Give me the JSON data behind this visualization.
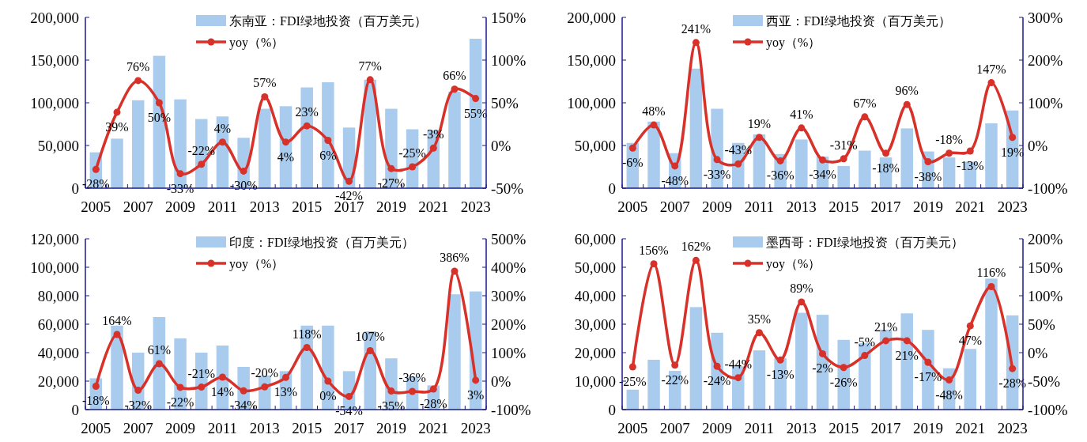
{
  "chart_data": [
    {
      "type": "bar",
      "categories": [
        "2005",
        null,
        "2007",
        null,
        "2009",
        null,
        "2011",
        null,
        "2013",
        null,
        "2015",
        null,
        "2017",
        null,
        "2019",
        null,
        "2021",
        null,
        "2023"
      ],
      "series": [
        {
          "name": "东南亚：FDI绿地投资（百万美元）",
          "color": "#a9cbed",
          "values": [
            42000,
            58000,
            103000,
            155000,
            104000,
            81000,
            84000,
            59000,
            93000,
            96000,
            118000,
            124000,
            71000,
            127000,
            93000,
            69000,
            68000,
            113000,
            175000
          ]
        },
        {
          "name": "yoy（%）",
          "type": "line",
          "axis": "y2",
          "color": "#d7312a",
          "marker": "circle",
          "values": [
            -28,
            39,
            76,
            50,
            -33,
            -22,
            4,
            -30,
            57,
            4,
            23,
            6,
            -42,
            77,
            -27,
            -25,
            -3,
            66,
            55
          ],
          "value_labels": [
            "-28%",
            "39%",
            "76%",
            "50%",
            "-33%",
            "-22%",
            "4%",
            "-30%",
            "57%",
            "4%",
            "23%",
            "6%",
            "-42%",
            "77%",
            "-27%",
            "-25%",
            "-3%",
            "66%",
            "55%"
          ]
        }
      ],
      "ylim": [
        0,
        200000
      ],
      "yticks": [
        {
          "value": 0,
          "label": "0"
        },
        {
          "value": 50000,
          "label": "50,000"
        },
        {
          "value": 100000,
          "label": "100,000"
        },
        {
          "value": 150000,
          "label": "150,000"
        },
        {
          "value": 200000,
          "label": "200,000"
        }
      ],
      "y2lim": [
        -50,
        150
      ],
      "y2ticks": [
        {
          "value": -50,
          "label": "-50%"
        },
        {
          "value": 0,
          "label": "0%"
        },
        {
          "value": 50,
          "label": "50%"
        },
        {
          "value": 100,
          "label": "100%"
        },
        {
          "value": 150,
          "label": "150%"
        }
      ],
      "legend": "top"
    },
    {
      "type": "bar",
      "categories": [
        "2005",
        null,
        "2007",
        null,
        "2009",
        null,
        "2011",
        null,
        "2013",
        null,
        "2015",
        null,
        "2017",
        null,
        "2019",
        null,
        "2021",
        null,
        "2023"
      ],
      "series": [
        {
          "name": "西亚：FDI绿地投资（百万美元）",
          "color": "#a9cbed",
          "values": [
            53000,
            78000,
            41000,
            140000,
            93000,
            53000,
            63000,
            40000,
            57000,
            37000,
            26000,
            44000,
            36000,
            70000,
            43000,
            36000,
            31000,
            76000,
            91000
          ]
        },
        {
          "name": "yoy（%）",
          "type": "line",
          "axis": "y2",
          "color": "#d7312a",
          "marker": "circle",
          "values": [
            -6,
            48,
            -48,
            241,
            -33,
            -43,
            19,
            -36,
            41,
            -34,
            -31,
            67,
            -18,
            96,
            -38,
            -18,
            -13,
            147,
            19
          ],
          "value_labels": [
            "-6%",
            "48%",
            "-48%",
            "241%",
            "-33%",
            "-43%",
            "19%",
            "-36%",
            "41%",
            "-34%",
            "-31%",
            "67%",
            "-18%",
            "96%",
            "-38%",
            "-18%",
            "-13%",
            "147%",
            "19%"
          ]
        }
      ],
      "ylim": [
        0,
        200000
      ],
      "yticks": [
        {
          "value": 0,
          "label": "0"
        },
        {
          "value": 50000,
          "label": "50,000"
        },
        {
          "value": 100000,
          "label": "100,000"
        },
        {
          "value": 150000,
          "label": "150,000"
        },
        {
          "value": 200000,
          "label": "200,000"
        }
      ],
      "y2lim": [
        -100,
        300
      ],
      "y2ticks": [
        {
          "value": -100,
          "label": "-100%"
        },
        {
          "value": 0,
          "label": "0%"
        },
        {
          "value": 100,
          "label": "100%"
        },
        {
          "value": 200,
          "label": "200%"
        },
        {
          "value": 300,
          "label": "300%"
        }
      ],
      "legend": "top"
    },
    {
      "type": "bar",
      "categories": [
        "2005",
        null,
        "2007",
        null,
        "2009",
        null,
        "2011",
        null,
        "2013",
        null,
        "2015",
        null,
        "2017",
        null,
        "2019",
        null,
        "2021",
        null,
        "2023"
      ],
      "series": [
        {
          "name": "印度：FDI绿地投资（百万美元）",
          "color": "#a9cbed",
          "values": [
            22000,
            59000,
            40000,
            65000,
            50000,
            40000,
            45000,
            30000,
            24000,
            27000,
            59000,
            59000,
            27000,
            55000,
            36000,
            23000,
            17000,
            81000,
            83000
          ]
        },
        {
          "name": "yoy（%）",
          "type": "line",
          "axis": "y2",
          "color": "#d7312a",
          "marker": "circle",
          "values": [
            -18,
            164,
            -32,
            61,
            -22,
            -21,
            14,
            -34,
            -20,
            13,
            118,
            0,
            -54,
            107,
            -35,
            -36,
            -28,
            386,
            3
          ],
          "value_labels": [
            "-18%",
            "164%",
            "-32%",
            "61%",
            "-22%",
            "-21%",
            "14%",
            "-34%",
            "-20%",
            "13%",
            "118%",
            "0%",
            "-54%",
            "107%",
            "-35%",
            "-36%",
            "-28%",
            "386%",
            "3%"
          ]
        }
      ],
      "ylim": [
        0,
        120000
      ],
      "yticks": [
        {
          "value": 0,
          "label": "0"
        },
        {
          "value": 20000,
          "label": "20,000"
        },
        {
          "value": 40000,
          "label": "40,000"
        },
        {
          "value": 60000,
          "label": "60,000"
        },
        {
          "value": 80000,
          "label": "80,000"
        },
        {
          "value": 100000,
          "label": "100,000"
        },
        {
          "value": 120000,
          "label": "120,000"
        }
      ],
      "y2lim": [
        -100,
        500
      ],
      "y2ticks": [
        {
          "value": -100,
          "label": "-100%"
        },
        {
          "value": 0,
          "label": "0%"
        },
        {
          "value": 100,
          "label": "100%"
        },
        {
          "value": 200,
          "label": "200%"
        },
        {
          "value": 300,
          "label": "300%"
        },
        {
          "value": 400,
          "label": "400%"
        },
        {
          "value": 500,
          "label": "500%"
        }
      ],
      "legend": "top"
    },
    {
      "type": "bar",
      "categories": [
        "2005",
        null,
        "2007",
        null,
        "2009",
        null,
        "2011",
        null,
        "2013",
        null,
        "2015",
        null,
        "2017",
        null,
        "2019",
        null,
        "2021",
        null,
        "2023"
      ],
      "series": [
        {
          "name": "墨西哥：FDI绿地投资（百万美元）",
          "color": "#a9cbed",
          "values": [
            7000,
            17500,
            13600,
            36000,
            27000,
            15200,
            20800,
            18100,
            34000,
            33300,
            24500,
            23300,
            28100,
            33800,
            28000,
            14500,
            21300,
            46000,
            33100
          ]
        },
        {
          "name": "yoy（%）",
          "type": "line",
          "axis": "y2",
          "color": "#d7312a",
          "marker": "circle",
          "values": [
            -25,
            156,
            -22,
            162,
            -24,
            -44,
            35,
            -13,
            89,
            -2,
            -26,
            -5,
            21,
            21,
            -17,
            -48,
            47,
            116,
            -28
          ],
          "value_labels": [
            "-25%",
            "156%",
            "-22%",
            "162%",
            "-24%",
            "-44%",
            "35%",
            "-13%",
            "89%",
            "-2%",
            "-26%",
            "-5%",
            "21%",
            "21%",
            "-17%",
            "-48%",
            "47%",
            "116%",
            "-28%"
          ]
        }
      ],
      "ylim": [
        0,
        60000
      ],
      "yticks": [
        {
          "value": 0,
          "label": "0"
        },
        {
          "value": 10000,
          "label": "10,000"
        },
        {
          "value": 20000,
          "label": "20,000"
        },
        {
          "value": 30000,
          "label": "30,000"
        },
        {
          "value": 40000,
          "label": "40,000"
        },
        {
          "value": 50000,
          "label": "50,000"
        },
        {
          "value": 60000,
          "label": "60,000"
        }
      ],
      "y2lim": [
        -100,
        200
      ],
      "y2ticks": [
        {
          "value": -100,
          "label": "-100%"
        },
        {
          "value": -50,
          "label": "-50%"
        },
        {
          "value": 0,
          "label": "0%"
        },
        {
          "value": 50,
          "label": "50%"
        },
        {
          "value": 100,
          "label": "100%"
        },
        {
          "value": 150,
          "label": "150%"
        },
        {
          "value": 200,
          "label": "200%"
        }
      ],
      "legend": "top"
    }
  ]
}
